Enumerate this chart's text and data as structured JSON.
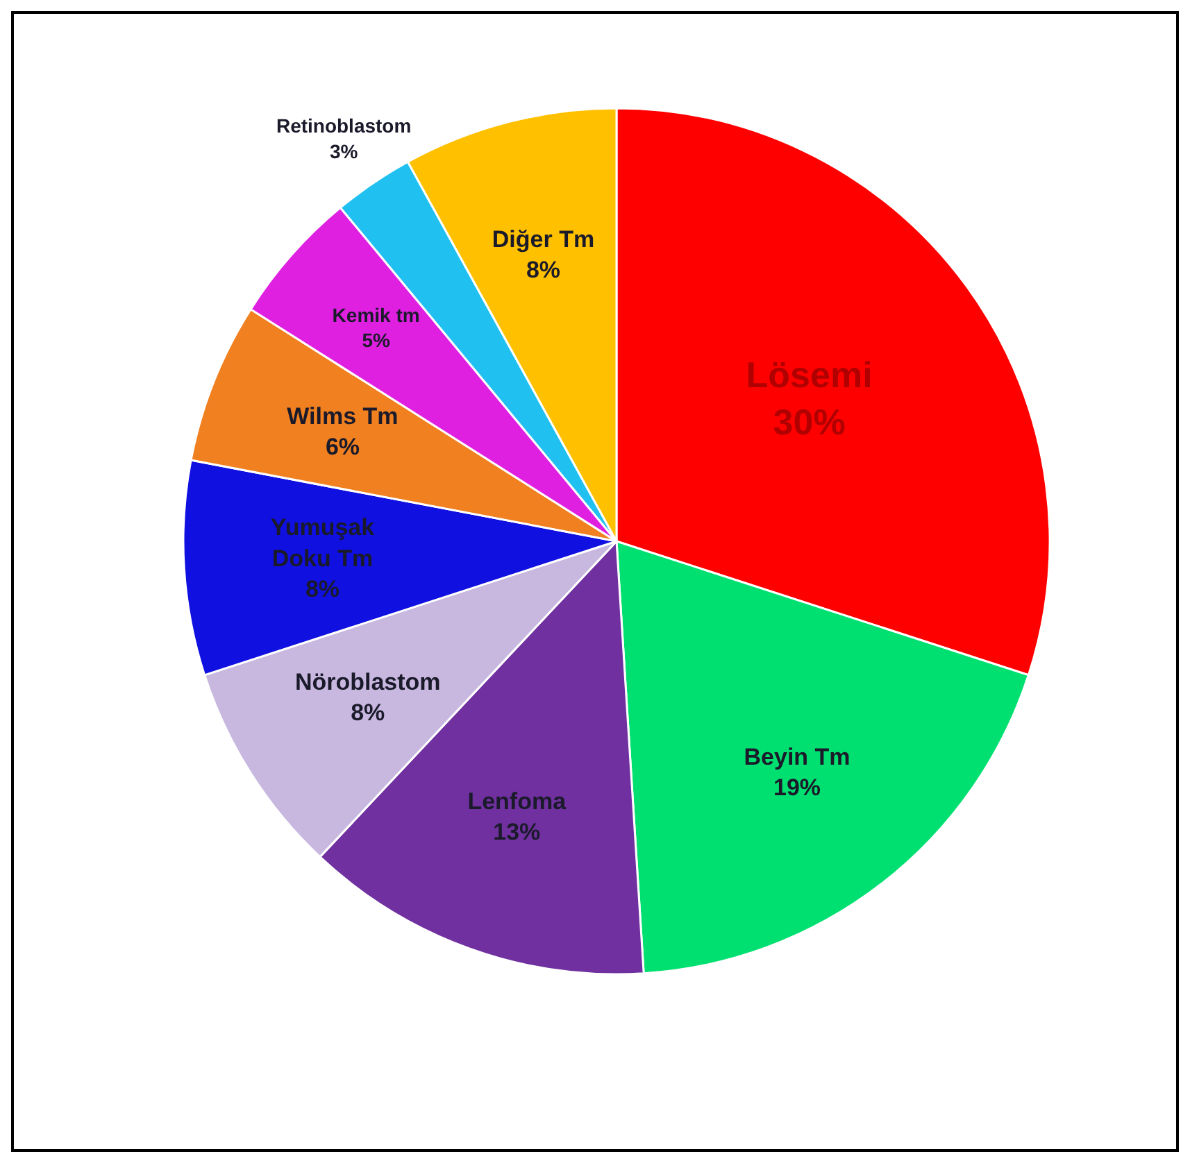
{
  "chart_data": {
    "type": "pie",
    "categories": [
      "Lösemi",
      "Beyin Tm",
      "Lenfoma",
      "Nöroblastom",
      "Yumuşak Doku Tm",
      "Wilms Tm",
      "Kemik tm",
      "Retinoblastom",
      "Diğer Tm"
    ],
    "values": [
      30,
      19,
      13,
      8,
      8,
      6,
      5,
      3,
      8
    ],
    "colors": [
      "#ff0000",
      "#00e070",
      "#7030a0",
      "#c8b8e0",
      "#1010e0",
      "#f08020",
      "#e020e0",
      "#20c0f0",
      "#ffc000"
    ],
    "value_labels": [
      "30%",
      "19%",
      "13%",
      "8%",
      "8%",
      "6%",
      "5%",
      "3%",
      "8%"
    ]
  }
}
